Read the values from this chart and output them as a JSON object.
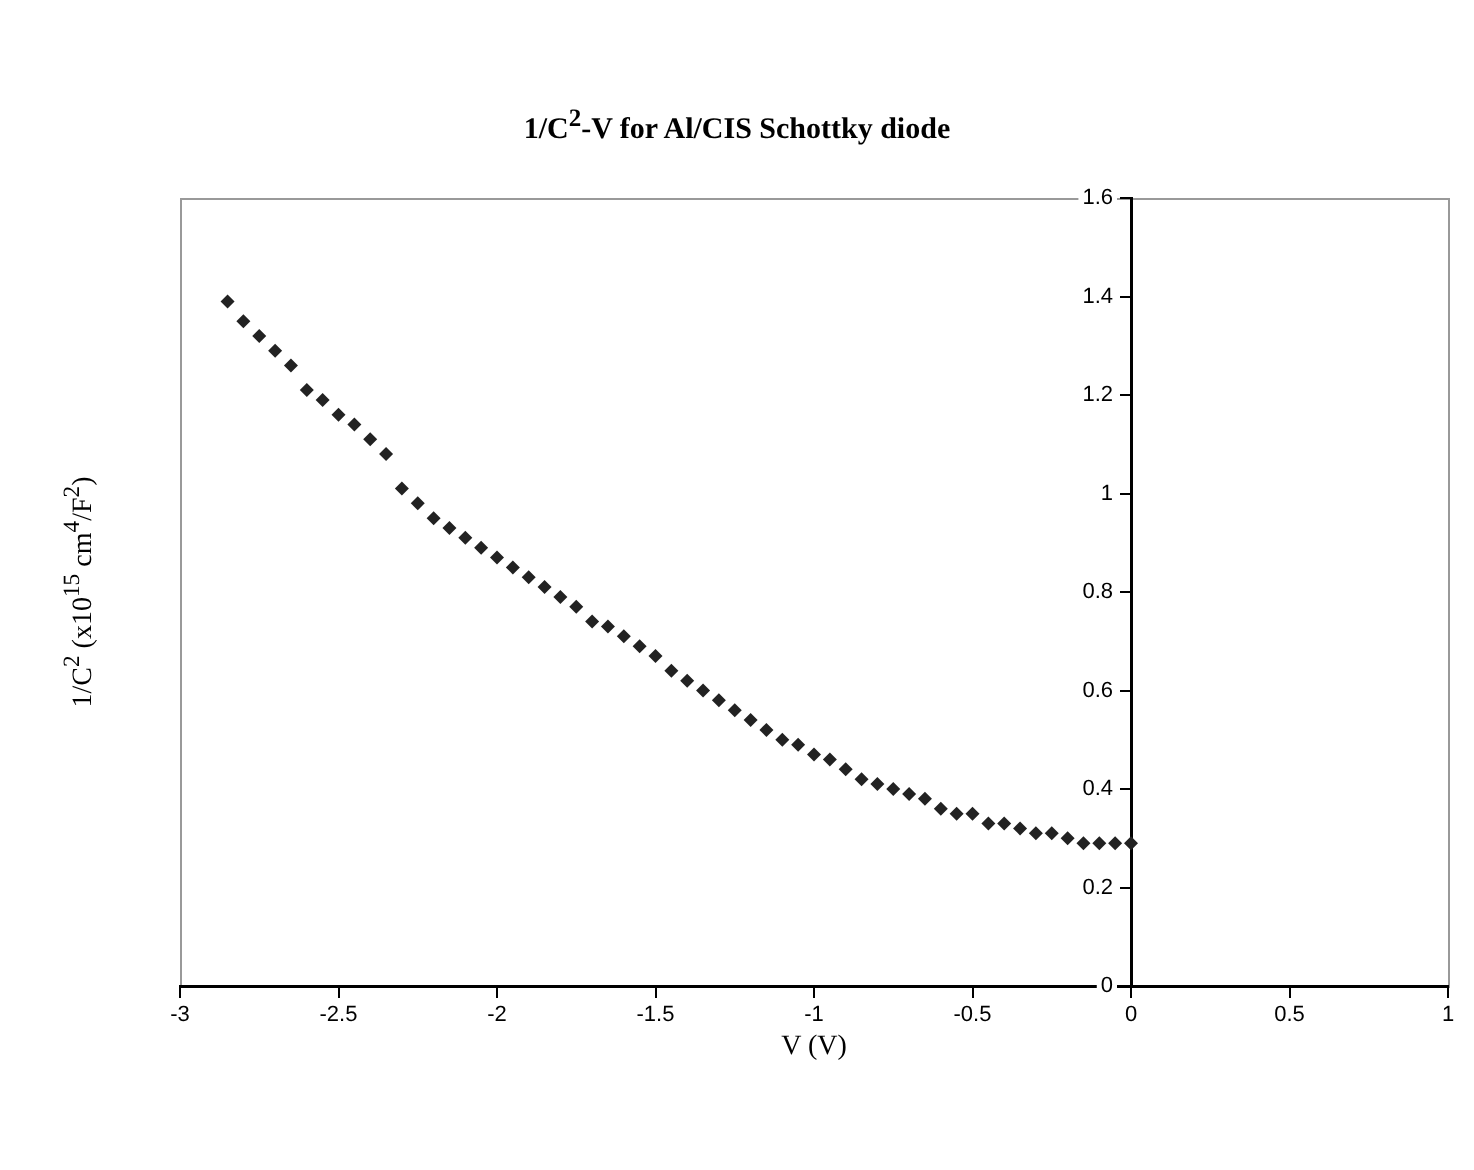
{
  "chart_data": {
    "type": "scatter",
    "title": "1/C$^{2}$-V for Al/CIS Schottky diode",
    "xlabel": "V (V)",
    "ylabel": "1/C$^{2}$ (x10$^{15}$ cm$^{4}$/F$^{2}$)",
    "x": [
      -2.85,
      -2.8,
      -2.75,
      -2.7,
      -2.65,
      -2.6,
      -2.55,
      -2.5,
      -2.45,
      -2.4,
      -2.35,
      -2.3,
      -2.25,
      -2.2,
      -2.15,
      -2.1,
      -2.05,
      -2.0,
      -1.95,
      -1.9,
      -1.85,
      -1.8,
      -1.75,
      -1.7,
      -1.65,
      -1.6,
      -1.55,
      -1.5,
      -1.45,
      -1.4,
      -1.35,
      -1.3,
      -1.25,
      -1.2,
      -1.15,
      -1.1,
      -1.05,
      -1.0,
      -0.95,
      -0.9,
      -0.85,
      -0.8,
      -0.75,
      -0.7,
      -0.65,
      -0.6,
      -0.55,
      -0.5,
      -0.45,
      -0.4,
      -0.35,
      -0.3,
      -0.25,
      -0.2,
      -0.15,
      -0.1,
      -0.05,
      0
    ],
    "series": [
      {
        "color": "#222222",
        "values": [
          1.39,
          1.35,
          1.32,
          1.29,
          1.26,
          1.21,
          1.19,
          1.16,
          1.14,
          1.11,
          1.08,
          1.01,
          0.98,
          0.95,
          0.93,
          0.91,
          0.89,
          0.87,
          0.85,
          0.83,
          0.81,
          0.79,
          0.77,
          0.74,
          0.73,
          0.71,
          0.69,
          0.67,
          0.64,
          0.62,
          0.6,
          0.58,
          0.56,
          0.54,
          0.52,
          0.5,
          0.49,
          0.47,
          0.46,
          0.44,
          0.42,
          0.41,
          0.4,
          0.39,
          0.38,
          0.36,
          0.35,
          0.35,
          0.33,
          0.33,
          0.32,
          0.31,
          0.31,
          0.3,
          0.29,
          0.29,
          0.29,
          0.29
        ]
      }
    ],
    "xlim": [
      -3,
      1
    ],
    "xticks": [
      -3,
      -2.5,
      -2,
      -1.5,
      -1,
      -0.5,
      0,
      0.5,
      1
    ],
    "ylim": [
      0,
      1.6
    ],
    "yticks": [
      0,
      0.2,
      0.4,
      0.6,
      0.8,
      1,
      1.2,
      1.4,
      1.6
    ],
    "grid": false,
    "legend": false,
    "marker": "diamond"
  }
}
